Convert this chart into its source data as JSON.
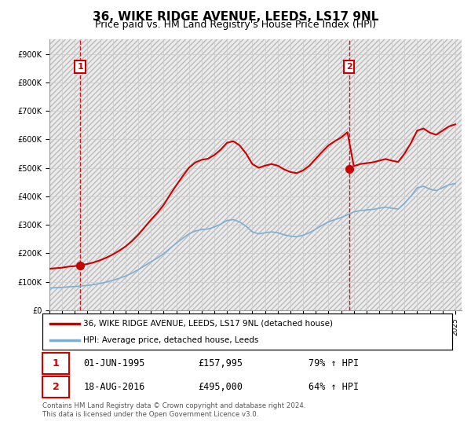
{
  "title": "36, WIKE RIDGE AVENUE, LEEDS, LS17 9NL",
  "subtitle": "Price paid vs. HM Land Registry's House Price Index (HPI)",
  "ylim": [
    0,
    950000
  ],
  "yticks": [
    0,
    100000,
    200000,
    300000,
    400000,
    500000,
    600000,
    700000,
    800000,
    900000
  ],
  "ytick_labels": [
    "£0",
    "£100K",
    "£200K",
    "£300K",
    "£400K",
    "£500K",
    "£600K",
    "£700K",
    "£800K",
    "£900K"
  ],
  "background_color": "#ffffff",
  "grid_color": "#cccccc",
  "plot_bg_color": "#ebebeb",
  "hpi_line_color": "#7bafd4",
  "price_line_color": "#cc0000",
  "vline_color": "#cc0000",
  "transaction1": {
    "date_num": 1995.42,
    "price": 157995,
    "label": "1"
  },
  "transaction2": {
    "date_num": 2016.63,
    "price": 495000,
    "label": "2"
  },
  "legend_line1": "36, WIKE RIDGE AVENUE, LEEDS, LS17 9NL (detached house)",
  "legend_line2": "HPI: Average price, detached house, Leeds",
  "table_row1": [
    "1",
    "01-JUN-1995",
    "£157,995",
    "79% ↑ HPI"
  ],
  "table_row2": [
    "2",
    "18-AUG-2016",
    "£495,000",
    "64% ↑ HPI"
  ],
  "footer": "Contains HM Land Registry data © Crown copyright and database right 2024.\nThis data is licensed under the Open Government Licence v3.0.",
  "title_fontsize": 11,
  "subtitle_fontsize": 9,
  "tick_fontsize": 7,
  "xlim_start": 1993,
  "xlim_end": 2025.5,
  "hpi_values": [
    78000,
    79000,
    80000,
    82000,
    83000,
    85000,
    87000,
    90000,
    94000,
    99000,
    105000,
    112000,
    120000,
    130000,
    142000,
    156000,
    170000,
    183000,
    198000,
    217000,
    235000,
    252000,
    268000,
    278000,
    283000,
    285000,
    292000,
    302000,
    315000,
    318000,
    310000,
    295000,
    275000,
    268000,
    272000,
    275000,
    272000,
    265000,
    260000,
    258000,
    263000,
    272000,
    285000,
    298000,
    310000,
    318000,
    325000,
    335000,
    345000,
    350000,
    352000,
    354000,
    358000,
    362000,
    358000,
    355000,
    375000,
    400000,
    430000,
    435000,
    425000,
    420000,
    430000,
    440000,
    445000
  ],
  "years_hpi": [
    1993,
    1993.5,
    1994,
    1994.5,
    1995,
    1995.5,
    1996,
    1996.5,
    1997,
    1997.5,
    1998,
    1998.5,
    1999,
    1999.5,
    2000,
    2000.5,
    2001,
    2001.5,
    2002,
    2002.5,
    2003,
    2003.5,
    2004,
    2004.5,
    2005,
    2005.5,
    2006,
    2006.5,
    2007,
    2007.5,
    2008,
    2008.5,
    2009,
    2009.5,
    2010,
    2010.5,
    2011,
    2011.5,
    2012,
    2012.5,
    2013,
    2013.5,
    2014,
    2014.5,
    2015,
    2015.5,
    2016,
    2016.5,
    2017,
    2017.5,
    2018,
    2018.5,
    2019,
    2019.5,
    2020,
    2020.5,
    2021,
    2021.5,
    2022,
    2022.5,
    2023,
    2023.5,
    2024,
    2024.5,
    2025
  ]
}
